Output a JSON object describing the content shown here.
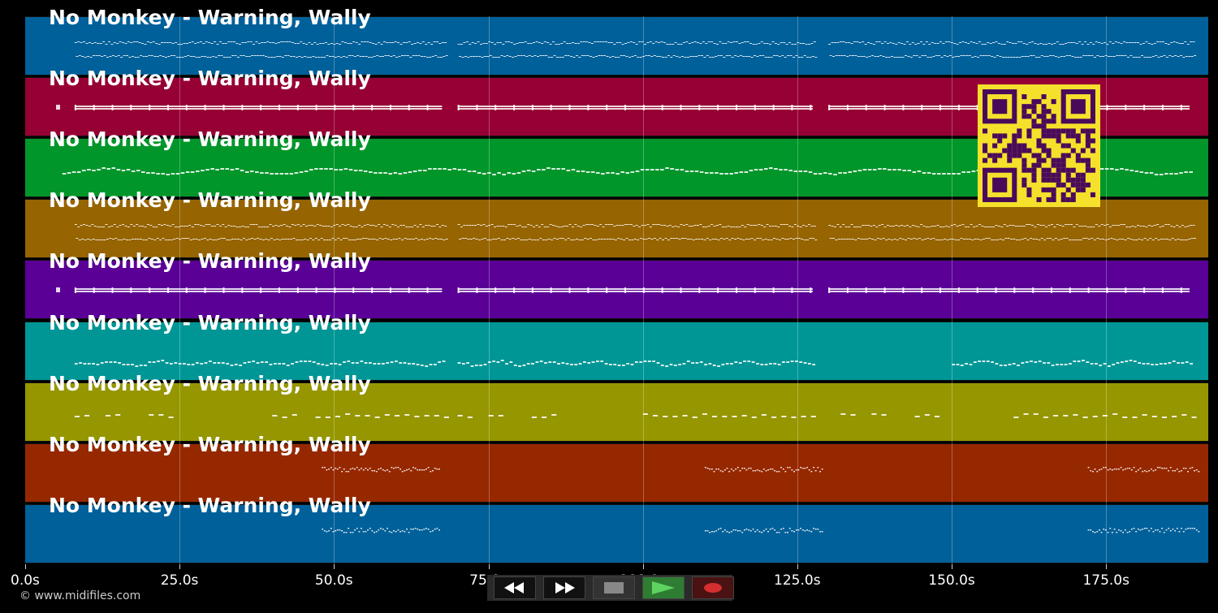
{
  "tracks": [
    {
      "title": "No Monkey - Warning, Wally",
      "color": "#00609a",
      "pattern": "dense-double"
    },
    {
      "title": "No Monkey - Warning, Wally",
      "color": "#960034",
      "pattern": "bars"
    },
    {
      "title": "No Monkey - Warning, Wally",
      "color": "#00962a",
      "pattern": "wave"
    },
    {
      "title": "No Monkey - Warning, Wally",
      "color": "#966400",
      "pattern": "dense"
    },
    {
      "title": "No Monkey - Warning, Wally",
      "color": "#5a0096",
      "pattern": "bars"
    },
    {
      "title": "No Monkey - Warning, Wally",
      "color": "#009696",
      "pattern": "melody"
    },
    {
      "title": "No Monkey - Warning, Wally",
      "color": "#969600",
      "pattern": "sparse"
    },
    {
      "title": "No Monkey - Warning, Wally",
      "color": "#962800",
      "pattern": "drums"
    },
    {
      "title": "No Monkey - Warning, Wally",
      "color": "#00609a",
      "pattern": "drums"
    }
  ],
  "timeline": {
    "ticks": [
      "0.0s",
      "25.0s",
      "50.0s",
      "75.0s",
      "100.0s",
      "125.0s",
      "150.0s",
      "175.0s"
    ],
    "tick_seconds": [
      0,
      25,
      50,
      75,
      100,
      125,
      150,
      175
    ],
    "max_seconds": 191.5
  },
  "copyright": "© www.midifiles.com",
  "controls": [
    {
      "name": "rewind-button",
      "icon": "rewind-icon"
    },
    {
      "name": "fast-forward-button",
      "icon": "fast-forward-icon"
    },
    {
      "name": "stop-button",
      "icon": "stop-icon"
    },
    {
      "name": "play-button",
      "icon": "play-icon"
    },
    {
      "name": "record-button",
      "icon": "record-icon"
    }
  ],
  "colors": {
    "qr_background": "#f5e12c",
    "qr_foreground": "#4a0a5a",
    "play_active": "#2e7d32"
  }
}
